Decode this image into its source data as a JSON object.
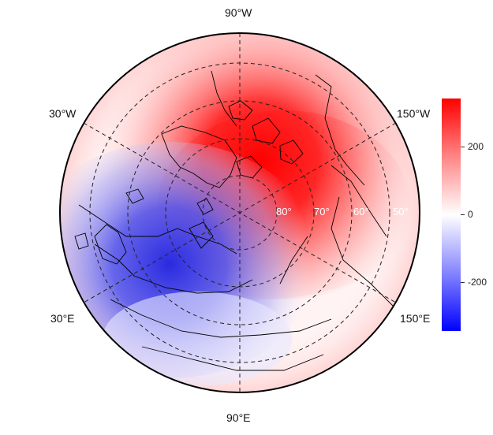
{
  "map": {
    "projection": "north-polar-stereographic",
    "longitude_labels": [
      "90°W",
      "150°W",
      "150°E",
      "90°E",
      "30°E",
      "30°W"
    ],
    "latitude_labels": [
      "80°",
      "70°",
      "60°",
      "50°"
    ],
    "field_pattern": "positive anomaly over Canadian Arctic / Greenland, negative anomaly over Barents-Kara Seas / northern Russia"
  },
  "colorbar": {
    "ticks": [
      "200",
      "0",
      "-200"
    ],
    "range": [
      -340,
      340
    ],
    "colors": {
      "high": "#ff0000",
      "mid": "#ffffff",
      "low": "#0000ff"
    }
  }
}
